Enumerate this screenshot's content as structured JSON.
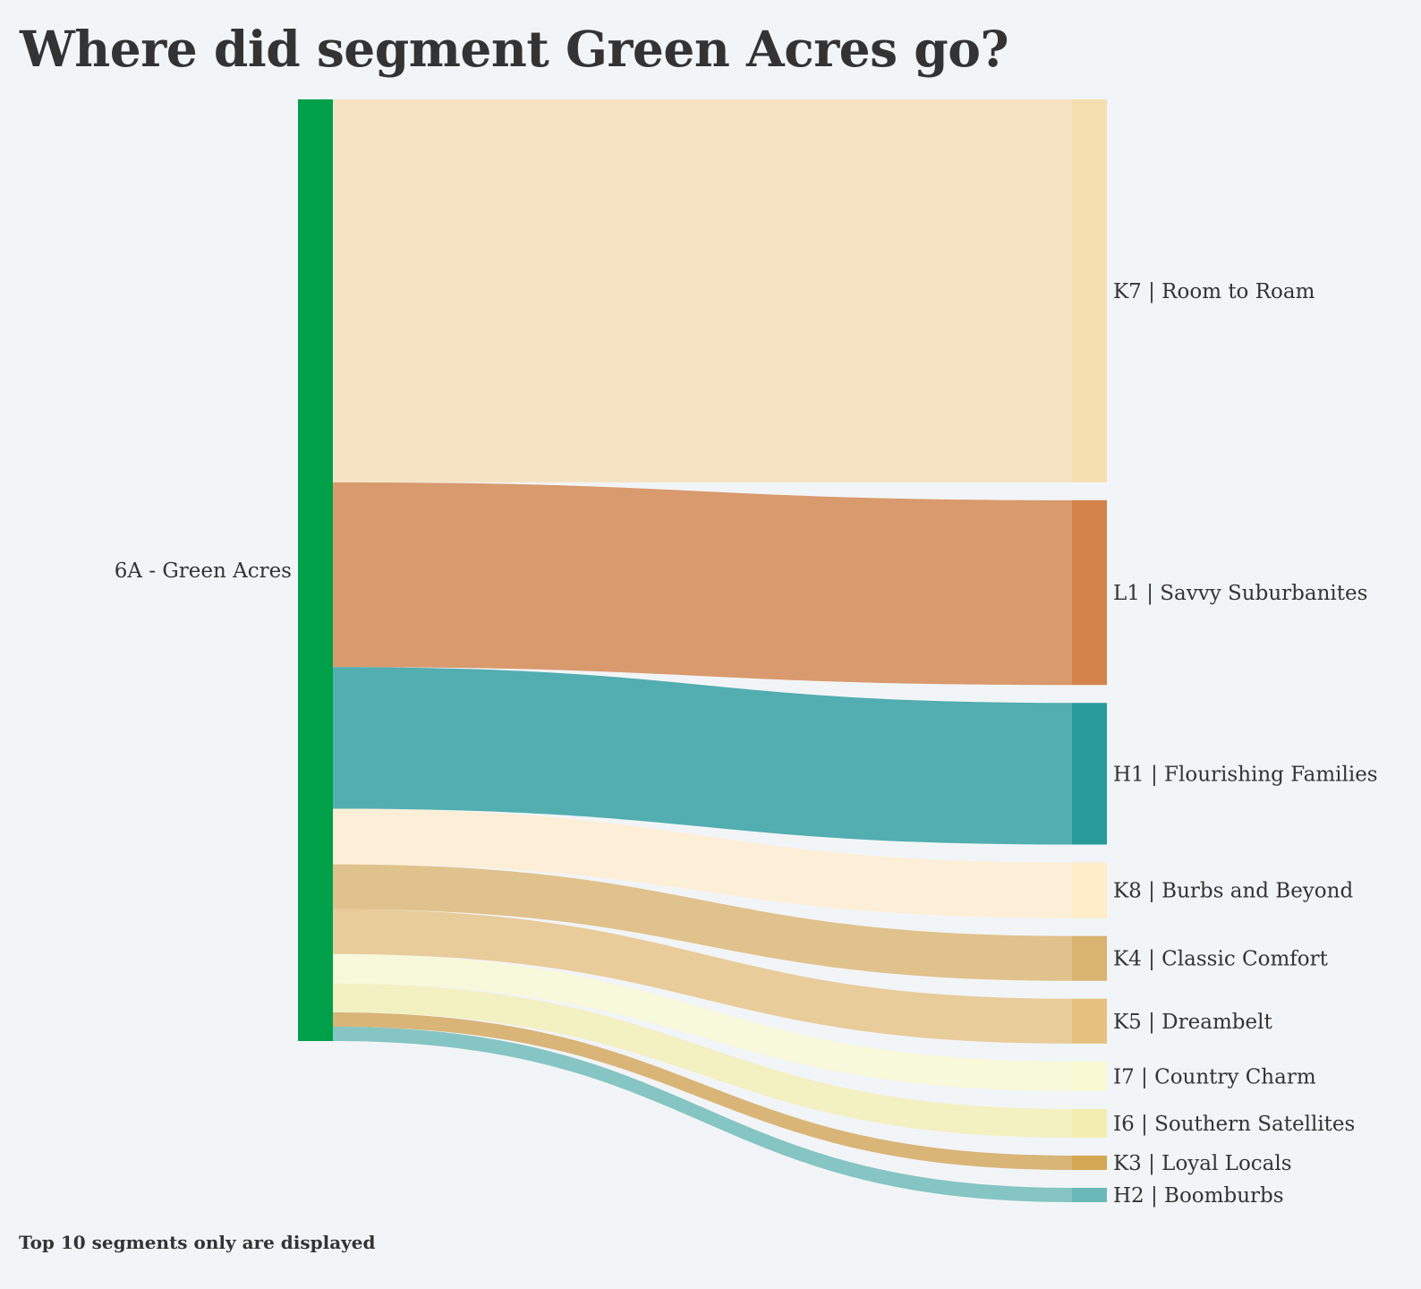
{
  "title": "Where did segment Green Acres go?",
  "footnote": "Top 10 segments only are displayed",
  "background": "#f2f5f7",
  "chart_data": {
    "type": "sankey",
    "title": "Where did segment Green Acres go?",
    "source": {
      "label": "6A - Green Acres",
      "color": "#00a04b"
    },
    "targets": [
      {
        "label": "K7 | Room to Roam",
        "value": 427,
        "node_color": "#f5deb0",
        "link_color": "#f6e3c3"
      },
      {
        "label": "L1 | Savvy Suburbanites",
        "value": 206,
        "node_color": "#d4834a",
        "link_color": "#d99a6e"
      },
      {
        "label": "H1 | Flourishing Families",
        "value": 158,
        "node_color": "#2a9b9b",
        "link_color": "#52aeb0"
      },
      {
        "label": "K8 | Burbs and Beyond",
        "value": 62,
        "node_color": "#ffecc8",
        "link_color": "#fdefd7"
      },
      {
        "label": "K4 | Classic Comfort",
        "value": 50,
        "node_color": "#d9b370",
        "link_color": "#e0c28c"
      },
      {
        "label": "K5 | Dreambelt",
        "value": 50,
        "node_color": "#e6c07f",
        "link_color": "#e8cc9a"
      },
      {
        "label": "I7 | Country Charm",
        "value": 33,
        "node_color": "#f9f9d2",
        "link_color": "#f8f8da"
      },
      {
        "label": "I6 | Southern Satellites",
        "value": 32,
        "node_color": "#f3eeb0",
        "link_color": "#f3f0c2"
      },
      {
        "label": "K3 | Loyal Locals",
        "value": 16,
        "node_color": "#d4a752",
        "link_color": "#d9b578"
      },
      {
        "label": "H2 | Boomburbs",
        "value": 16,
        "node_color": "#6bb8b8",
        "link_color": "#85c5c3"
      }
    ]
  }
}
